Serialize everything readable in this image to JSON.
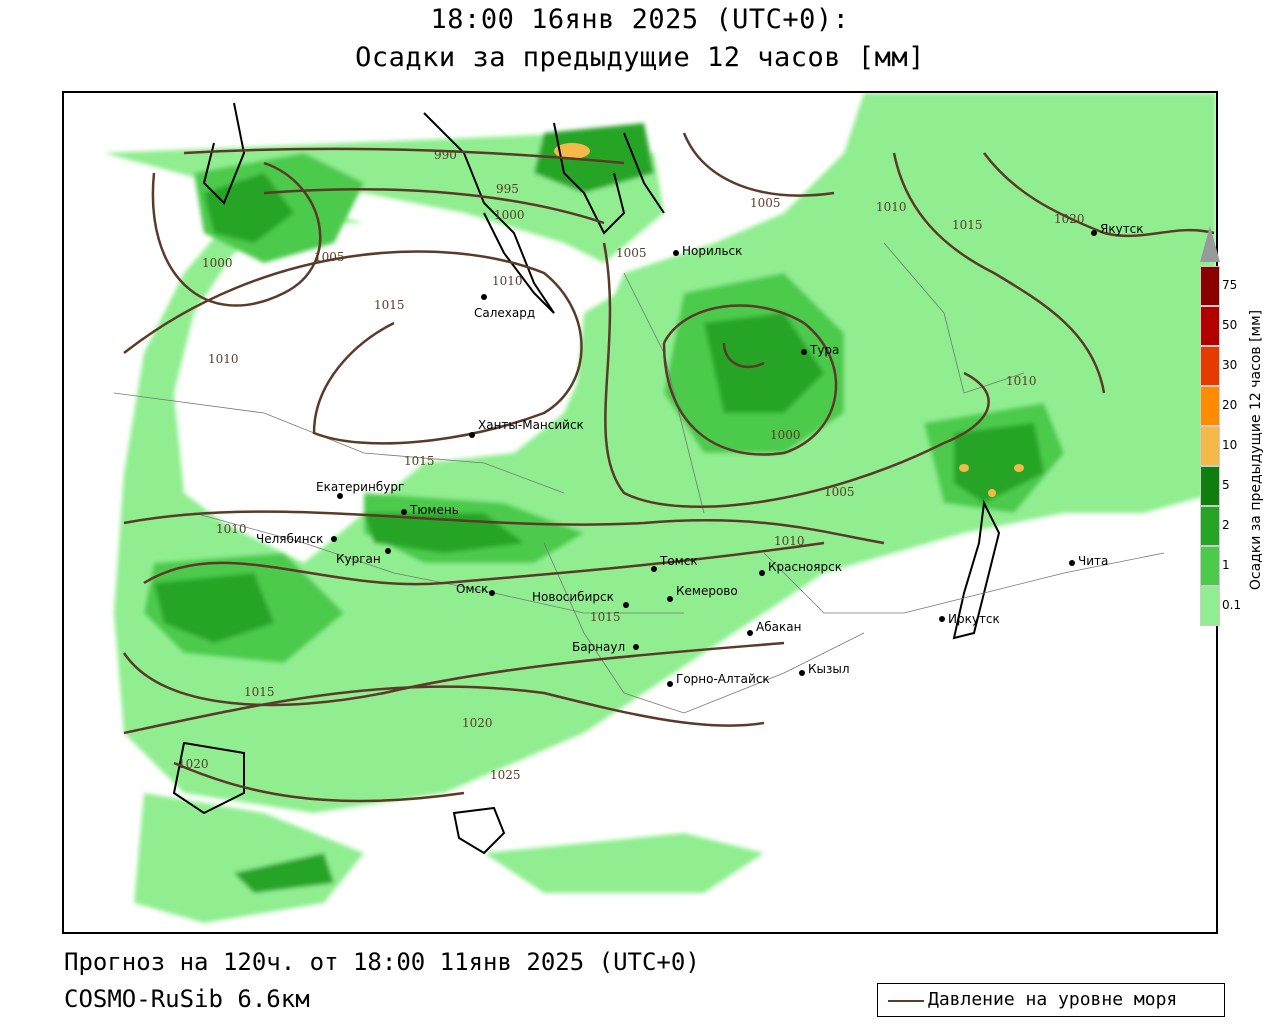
{
  "title_line1": "18:00 16янв 2025 (UTC+0):",
  "title_line2": "Осадки за предыдущие 12 часов [мм]",
  "forecast_line": "Прогноз на 120ч. от 18:00 11янв 2025 (UTC+0)",
  "model_line": "COSMO-RuSib 6.6км",
  "legend": {
    "isobar_label": "Давление на уровне моря",
    "isobar_color": "#5b3a29"
  },
  "colorbar": {
    "title": "Осадки за предыдущие 12 часов [мм]",
    "ticks": [
      "0.1",
      "1",
      "2",
      "5",
      "10",
      "20",
      "30",
      "50",
      "75"
    ],
    "colors": [
      "#ffffff",
      "#90ee90",
      "#4cca4c",
      "#26a426",
      "#0e7f0e",
      "#f5b94a",
      "#ff8c00",
      "#e63b00",
      "#b20000",
      "#8a0000"
    ]
  },
  "cities": [
    {
      "name": "Якутск"
    },
    {
      "name": "Норильск"
    },
    {
      "name": "Салехард"
    },
    {
      "name": "Тура"
    },
    {
      "name": "Ханты-Мансийск"
    },
    {
      "name": "Екатеринбург"
    },
    {
      "name": "Тюмень"
    },
    {
      "name": "Челябинск"
    },
    {
      "name": "Курган"
    },
    {
      "name": "Омск"
    },
    {
      "name": "Новосибирск"
    },
    {
      "name": "Томск"
    },
    {
      "name": "Кемерово"
    },
    {
      "name": "Барнаул"
    },
    {
      "name": "Красноярск"
    },
    {
      "name": "Абакан"
    },
    {
      "name": "Кызыл"
    },
    {
      "name": "Горно-Алтайск"
    },
    {
      "name": "Иркутск"
    },
    {
      "name": "Чита"
    }
  ],
  "isobar_labels": [
    "990",
    "995",
    "1000",
    "1000",
    "1005",
    "1005",
    "1005",
    "1010",
    "1010",
    "1010",
    "1010",
    "1010",
    "1010",
    "1015",
    "1015",
    "1015",
    "1015",
    "1015",
    "1020",
    "1020",
    "1020",
    "1025",
    "1000",
    "1005"
  ]
}
